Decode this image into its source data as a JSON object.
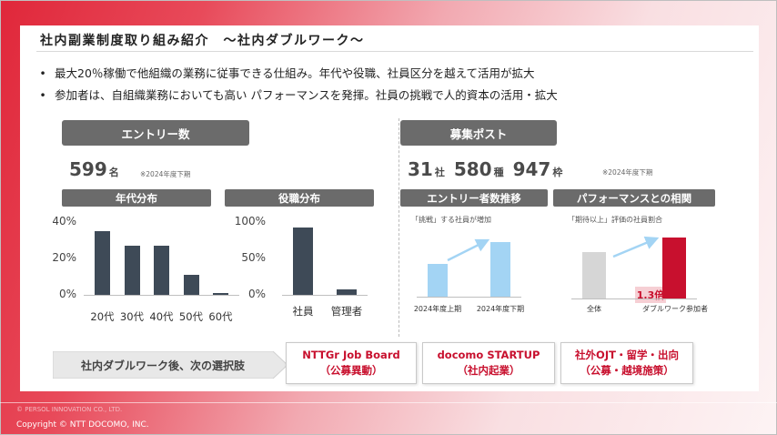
{
  "title": "社内副業制度取り組み紹介　～社内ダブルワーク～",
  "bullets": [
    "最大20％稼働で他組織の業務に従事できる仕組み。年代や役職、社員区分を越えて活用が拡大",
    "参加者は、自組織業務においても高い パフォーマンスを発揮。社員の挑戦で人的資本の活用・拡大"
  ],
  "entry": {
    "header": "エントリー数",
    "count": "599",
    "unit": "名",
    "note": "※2024年度下期"
  },
  "posts": {
    "header": "募集ポスト",
    "companies": "31",
    "companies_unit": "社",
    "types": "580",
    "types_unit": "種",
    "slots": "947",
    "slots_unit": "枠",
    "note": "※2024年度下期"
  },
  "chart_data": [
    {
      "type": "bar",
      "title": "年代分布",
      "categories": [
        "20代",
        "30代",
        "40代",
        "50代",
        "60代"
      ],
      "values": [
        35,
        27,
        27,
        11,
        1
      ],
      "ylim": [
        0,
        40
      ],
      "yticks": [
        "40%",
        "20%",
        "0%"
      ],
      "color": "#3e4a57"
    },
    {
      "type": "bar",
      "title": "役職分布",
      "categories": [
        "社員",
        "管理者"
      ],
      "values": [
        93,
        7
      ],
      "ylim": [
        0,
        100
      ],
      "yticks": [
        "100%",
        "50%",
        "0%"
      ],
      "color": "#3e4a57"
    },
    {
      "type": "bar",
      "title": "エントリー者数推移",
      "caption": "「挑戦」する社員が増加",
      "categories": [
        "2024年度上期",
        "2024年度下期"
      ],
      "values": [
        45,
        75
      ],
      "ylim": [
        0,
        100
      ],
      "color": "#a3d4f4"
    },
    {
      "type": "bar",
      "title": "パフォーマンスとの相関",
      "caption": "「期待以上」評価の社員割合",
      "categories": [
        "全体",
        "ダブルワーク参加者"
      ],
      "values": [
        1,
        1.3
      ],
      "ylim": [
        0,
        1.6
      ],
      "ratio_label": "1.3倍",
      "colors": [
        "#d6d6d6",
        "#c8102e"
      ]
    }
  ],
  "next_options": {
    "label": "社内ダブルワーク後、次の選択肢",
    "options": [
      {
        "line1": "NTTGr Job Board",
        "line2": "（公募異動）"
      },
      {
        "line1": "docomo STARTUP",
        "line2": "（社内起業）"
      },
      {
        "line1": "社外OJT・留学・出向",
        "line2": "（公募・越境施策）"
      }
    ]
  },
  "footer": {
    "ghost": "© PERSOL INNOVATION CO., LTD.",
    "copyright": "Copyright © NTT DOCOMO, INC."
  },
  "colors": {
    "accent": "#c8102e",
    "dark_bar": "#3e4a57",
    "light_bar": "#a3d4f4",
    "pill": "#6b6b6b"
  }
}
